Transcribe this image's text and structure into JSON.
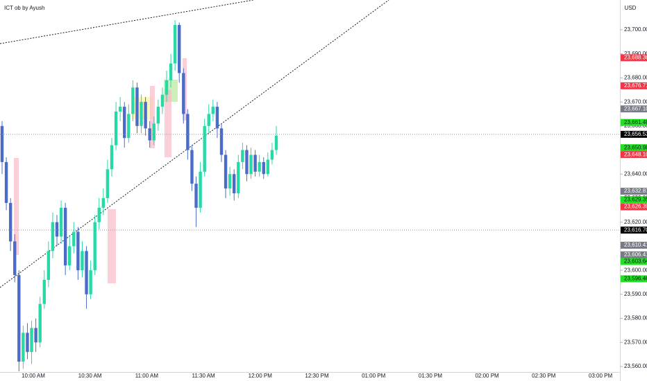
{
  "chart_data": {
    "type": "candlestick",
    "title": "ICT ob by Ayush",
    "currency": "USD",
    "up_color": "#26d9a6",
    "down_color": "#4a6cc6",
    "candles": [
      [
        23660,
        23662,
        23640,
        23645
      ],
      [
        23645,
        23647,
        23625,
        23628
      ],
      [
        23628,
        23630,
        23608,
        23612
      ],
      [
        23612,
        23615,
        23595,
        23598
      ],
      [
        23598,
        23600,
        23558,
        23562
      ],
      [
        23562,
        23577,
        23559,
        23574
      ],
      [
        23574,
        23578,
        23563,
        23566
      ],
      [
        23566,
        23579,
        23561,
        23576
      ],
      [
        23576,
        23580,
        23566,
        23570
      ],
      [
        23570,
        23589,
        23568,
        23586
      ],
      [
        23586,
        23600,
        23584,
        23596
      ],
      [
        23596,
        23612,
        23593,
        23608
      ],
      [
        23608,
        23624,
        23605,
        23620
      ],
      [
        23620,
        23623,
        23610,
        23614
      ],
      [
        23614,
        23629,
        23611,
        23626
      ],
      [
        23626,
        23628,
        23598,
        23602
      ],
      [
        23602,
        23614,
        23600,
        23610
      ],
      [
        23610,
        23620,
        23607,
        23616
      ],
      [
        23616,
        23618,
        23596,
        23600
      ],
      [
        23600,
        23612,
        23597,
        23608
      ],
      [
        23608,
        23610,
        23584,
        23590
      ],
      [
        23590,
        23604,
        23588,
        23600
      ],
      [
        23600,
        23623,
        23598,
        23620
      ],
      [
        23620,
        23630,
        23617,
        23626
      ],
      [
        23626,
        23634,
        23623,
        23630
      ],
      [
        23630,
        23646,
        23628,
        23642
      ],
      [
        23642,
        23655,
        23639,
        23652
      ],
      [
        23652,
        23670,
        23650,
        23666
      ],
      [
        23666,
        23672,
        23662,
        23668
      ],
      [
        23668,
        23670,
        23651,
        23655
      ],
      [
        23655,
        23669,
        23653,
        23665
      ],
      [
        23665,
        23679,
        23662,
        23676
      ],
      [
        23676,
        23678,
        23657,
        23660
      ],
      [
        23660,
        23673,
        23657,
        23670
      ],
      [
        23670,
        23672,
        23656,
        23659
      ],
      [
        23659,
        23662,
        23651,
        23654
      ],
      [
        23654,
        23664,
        23652,
        23661
      ],
      [
        23661,
        23671,
        23658,
        23668
      ],
      [
        23668,
        23676,
        23665,
        23673
      ],
      [
        23673,
        23683,
        23670,
        23679
      ],
      [
        23679,
        23690,
        23676,
        23686
      ],
      [
        23686,
        23704,
        23683,
        23702
      ],
      [
        23702,
        23703,
        23678,
        23682
      ],
      [
        23682,
        23684,
        23661,
        23665
      ],
      [
        23665,
        23667,
        23646,
        23650
      ],
      [
        23650,
        23652,
        23633,
        23636
      ],
      [
        23636,
        23639,
        23618,
        23626
      ],
      [
        23626,
        23645,
        23624,
        23641
      ],
      [
        23641,
        23663,
        23639,
        23660
      ],
      [
        23660,
        23669,
        23657,
        23665
      ],
      [
        23665,
        23671,
        23662,
        23668
      ],
      [
        23668,
        23670,
        23655,
        23659
      ],
      [
        23659,
        23661,
        23645,
        23648
      ],
      [
        23648,
        23650,
        23630,
        23634
      ],
      [
        23634,
        23643,
        23631,
        23640
      ],
      [
        23640,
        23642,
        23629,
        23632
      ],
      [
        23632,
        23648,
        23630,
        23645
      ],
      [
        23645,
        23653,
        23642,
        23650
      ],
      [
        23650,
        23652,
        23637,
        23640
      ],
      [
        23640,
        23651,
        23638,
        23648
      ],
      [
        23648,
        23650,
        23639,
        23641
      ],
      [
        23641,
        23648,
        23639,
        23645
      ],
      [
        23645,
        23647,
        23638,
        23640
      ],
      [
        23640,
        23649,
        23639,
        23646
      ],
      [
        23646,
        23653,
        23644,
        23650
      ],
      [
        23650,
        23660,
        23648,
        23656
      ]
    ],
    "ylim": [
      23560,
      23700
    ],
    "yticks": [
      {
        "value": 23560,
        "label": "23,560.00"
      },
      {
        "value": 23570,
        "label": "23,570.00"
      },
      {
        "value": 23580,
        "label": "23,580.00"
      },
      {
        "value": 23590,
        "label": "23,590.00"
      },
      {
        "value": 23600,
        "label": "23,600.00"
      },
      {
        "value": 23610,
        "label": "23,610.00"
      },
      {
        "value": 23620,
        "label": "23,620.00"
      },
      {
        "value": 23630,
        "label": "23,630.00"
      },
      {
        "value": 23640,
        "label": "23,640.00"
      },
      {
        "value": 23650,
        "label": "23,650.00"
      },
      {
        "value": 23660,
        "label": "23,660.00"
      },
      {
        "value": 23670,
        "label": "23,670.00"
      },
      {
        "value": 23680,
        "label": "23,680.00"
      },
      {
        "value": 23690,
        "label": "23,690.00"
      },
      {
        "value": 23700,
        "label": "23,700.00"
      }
    ],
    "xtick_labels": [
      "10:00 AM",
      "10:30 AM",
      "11:00 AM",
      "11:30 AM",
      "12:00 PM",
      "12:30 PM",
      "01:00 PM",
      "01:30 PM",
      "02:00 PM",
      "02:30 PM",
      "03:00 PM"
    ],
    "price_labels": [
      {
        "value": 23688.36,
        "label": "23,688.36",
        "color": "#f23645"
      },
      {
        "value": 23676.71,
        "label": "23,676.71",
        "color": "#f23645"
      },
      {
        "value": 23667.1,
        "label": "23,667.10",
        "color": "#787b86"
      },
      {
        "value": 23661.48,
        "label": "23,661.48",
        "color": "#22e022"
      },
      {
        "value": 23656.53,
        "label": "23,656.53",
        "color": "#000000"
      },
      {
        "value": 23650.98,
        "label": "23,650.98",
        "color": "#22e022"
      },
      {
        "value": 23648.1,
        "label": "23,648.10",
        "color": "#f23645"
      },
      {
        "value": 23632.87,
        "label": "23,632.87",
        "color": "#787b86"
      },
      {
        "value": 23629.35,
        "label": "23,629.35",
        "color": "#22e022"
      },
      {
        "value": 23626.39,
        "label": "23,626.39",
        "color": "#f23645"
      },
      {
        "value": 23616.7,
        "label": "23,616.70",
        "color": "#000000"
      },
      {
        "value": 23610.41,
        "label": "23,610.41",
        "color": "#787b86"
      },
      {
        "value": 23606.41,
        "label": "23,606.41",
        "color": "#787b86"
      },
      {
        "value": 23603.64,
        "label": "23,603.64",
        "color": "#22e022"
      },
      {
        "value": 23596.46,
        "label": "23,596.46",
        "color": "#22e022"
      }
    ]
  }
}
